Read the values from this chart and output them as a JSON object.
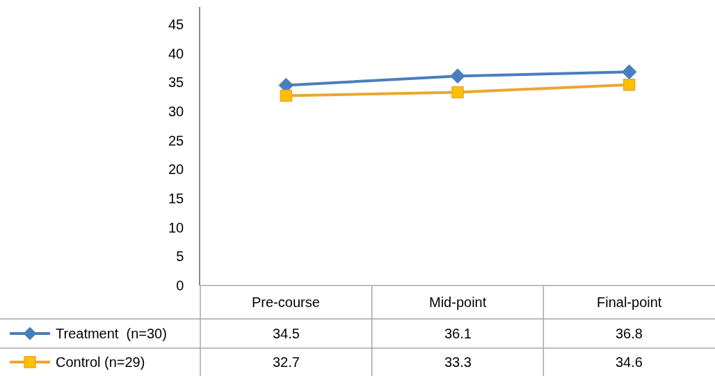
{
  "chart_data": {
    "type": "line",
    "categories": [
      "Pre-course",
      "Mid-point",
      "Final-point"
    ],
    "series": [
      {
        "name": "Treatment  (n=30)",
        "color": "#4a7ebb",
        "marker": "diamond",
        "values": [
          34.5,
          36.1,
          36.8
        ]
      },
      {
        "name": "Control (n=29)",
        "color": "#eba631",
        "marker": "square",
        "values": [
          32.7,
          33.3,
          34.6
        ]
      }
    ],
    "ylim": [
      0,
      48
    ],
    "yticks": [
      0,
      5,
      10,
      15,
      20,
      25,
      30,
      35,
      40,
      45
    ],
    "legend": "bottom left",
    "data_labels": true,
    "line_style": "solid"
  }
}
